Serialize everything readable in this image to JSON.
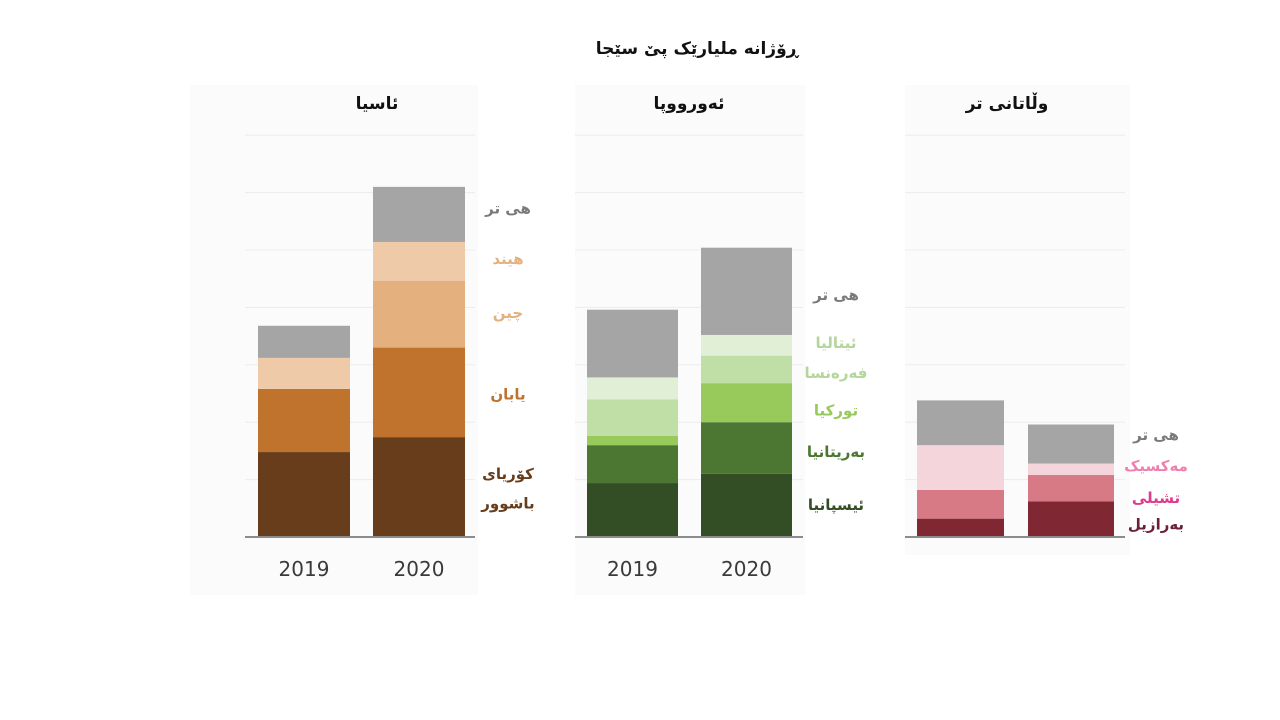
{
  "chart_data": {
    "type": "bar",
    "stacked": true,
    "title": "ڕۆژانە ملیارێک پێ سێجا",
    "ylim": [
      0,
      3.5
    ],
    "yticks": [
      "0.0",
      "0.5",
      "1.0",
      "1.5",
      "2.0",
      "2.5",
      "3.0",
      "3.5"
    ],
    "categories": [
      "2019",
      "2020"
    ],
    "grid": true,
    "panels": [
      {
        "title": "ئاسیا",
        "series": [
          {
            "name": "کۆریای باشوور",
            "color": "#673d1c",
            "values": [
              0.74,
              0.87
            ]
          },
          {
            "name": "یابان",
            "color": "#bf732d",
            "values": [
              0.55,
              0.78
            ]
          },
          {
            "name": "چین",
            "color": "#e4b07e",
            "values": [
              0.0,
              0.58
            ]
          },
          {
            "name": "هیند",
            "color": "#eecaa8",
            "values": [
              0.27,
              0.34
            ]
          },
          {
            "name": "هی تر",
            "color": "#a6a5a6",
            "values": [
              0.28,
              0.48
            ]
          }
        ],
        "labels": [
          {
            "text": "هی تر",
            "y": 2.86,
            "color": "#7a7a7a"
          },
          {
            "text": "هیند",
            "y": 2.42,
            "color": "#e4b07e"
          },
          {
            "text": "چین",
            "y": 1.95,
            "color": "#e4b07e"
          },
          {
            "text": "یابان",
            "y": 1.24,
            "color": "#bf732d"
          },
          {
            "text": "کۆریای",
            "y": 0.55,
            "color": "#673d1c"
          },
          {
            "text": "باشوور",
            "y": 0.29,
            "color": "#673d1c"
          }
        ]
      },
      {
        "title": "ئەورووپا",
        "series": [
          {
            "name": "ئیسپانیا",
            "color": "#334d25",
            "values": [
              0.47,
              0.55
            ]
          },
          {
            "name": "بەریتانیا",
            "color": "#4b7732",
            "values": [
              0.33,
              0.45
            ]
          },
          {
            "name": "تورکیا",
            "color": "#97ca5a",
            "values": [
              0.08,
              0.34
            ]
          },
          {
            "name": "فەرەنسا",
            "color": "#c0dfa6",
            "values": [
              0.32,
              0.24
            ]
          },
          {
            "name": "ئیتالیا",
            "color": "#e2efd7",
            "values": [
              0.19,
              0.18
            ]
          },
          {
            "name": "هی تر",
            "color": "#a6a5a6",
            "values": [
              0.59,
              0.76
            ]
          }
        ],
        "labels": [
          {
            "text": "هی تر",
            "y": 2.11,
            "color": "#7a7a7a"
          },
          {
            "text": "ئیتالیا",
            "y": 1.69,
            "color": "#b5d69a"
          },
          {
            "text": "فەرەنسا",
            "y": 1.43,
            "color": "#b5d69a"
          },
          {
            "text": "تورکیا",
            "y": 1.1,
            "color": "#97ca5a"
          },
          {
            "text": "بەریتانیا",
            "y": 0.74,
            "color": "#4b7732"
          },
          {
            "text": "ئیسپانیا",
            "y": 0.28,
            "color": "#334d25"
          }
        ]
      },
      {
        "title": "وڵاتانی تر",
        "series": [
          {
            "name": "بەرازیل",
            "color": "#7f2733",
            "values": [
              0.16,
              0.31
            ]
          },
          {
            "name": "تشیلی",
            "color": "#d87a86",
            "values": [
              0.25,
              0.23
            ]
          },
          {
            "name": "مەکسیک",
            "color": "#f4d5dc",
            "values": [
              0.39,
              0.1
            ]
          },
          {
            "name": "هی تر",
            "color": "#a6a5a6",
            "values": [
              0.39,
              0.34
            ]
          }
        ],
        "labels": [
          {
            "text": "هی تر",
            "y": 0.89,
            "color": "#7a7a7a"
          },
          {
            "text": "مەکسیک",
            "y": 0.62,
            "color": "#f07fb0"
          },
          {
            "text": "تشیلی",
            "y": 0.34,
            "color": "#e03a8c"
          },
          {
            "text": "بەرازیل",
            "y": 0.11,
            "color": "#6b1f3c"
          }
        ]
      }
    ]
  }
}
